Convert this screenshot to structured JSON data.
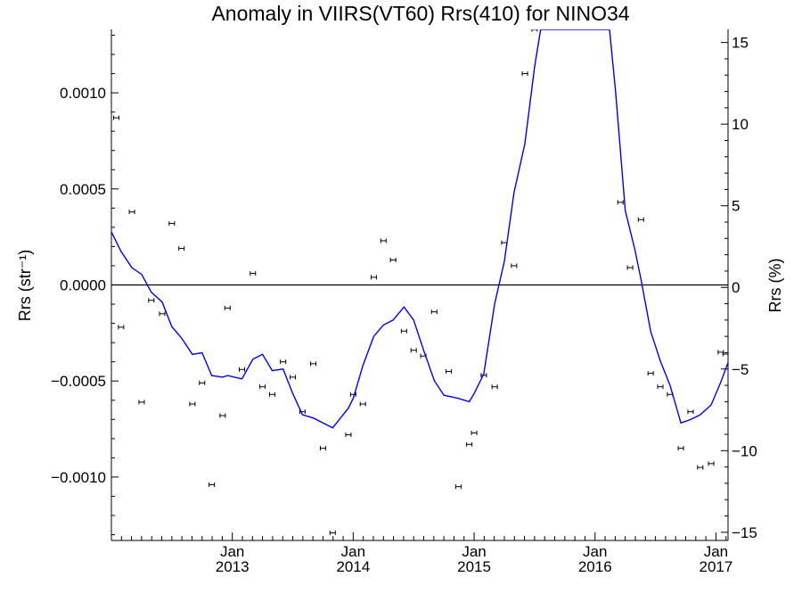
{
  "chart_data": {
    "type": "scatter",
    "title": "Anomaly in VIIRS(VT60) Rrs(410) for NINO34",
    "ylabel_left": "Rrs (str⁻¹)",
    "ylabel_right": "Rrs (%)",
    "xlim": [
      2012.0,
      2017.1
    ],
    "ylim_left": [
      -0.00133,
      0.00133
    ],
    "ylim_right": [
      -15.5,
      15.8
    ],
    "grid": false,
    "zero_line": true,
    "x_ticks": [
      {
        "x": 2013.0,
        "line1": "Jan",
        "line2": "2013"
      },
      {
        "x": 2014.0,
        "line1": "Jan",
        "line2": "2014"
      },
      {
        "x": 2015.0,
        "line1": "Jan",
        "line2": "2015"
      },
      {
        "x": 2016.0,
        "line1": "Jan",
        "line2": "2016"
      },
      {
        "x": 2017.0,
        "line1": "Jan",
        "line2": "2017"
      }
    ],
    "y_ticks_left": [
      {
        "v": 0.001,
        "label": "0.0010"
      },
      {
        "v": 0.0005,
        "label": "0.0005"
      },
      {
        "v": 0.0,
        "label": "0.0000"
      },
      {
        "v": -0.0005,
        "label": "−0.0005"
      },
      {
        "v": -0.001,
        "label": "−0.0010"
      }
    ],
    "y_ticks_right": [
      {
        "v": 15,
        "label": "15"
      },
      {
        "v": 10,
        "label": "10"
      },
      {
        "v": 5,
        "label": "5"
      },
      {
        "v": 0,
        "label": "0"
      },
      {
        "v": -5,
        "label": "−5"
      },
      {
        "v": -10,
        "label": "−10"
      },
      {
        "v": -15,
        "label": "−15"
      }
    ],
    "series": [
      {
        "axis": "left",
        "marker": "errorbar",
        "color": "#000000",
        "points": [
          {
            "x": 2012.04,
            "y": 0.00087
          },
          {
            "x": 2012.08,
            "y": -0.00022
          },
          {
            "x": 2012.17,
            "y": 0.00038
          },
          {
            "x": 2012.25,
            "y": -0.00061
          },
          {
            "x": 2012.33,
            "y": -8e-05
          },
          {
            "x": 2012.42,
            "y": -0.00015
          },
          {
            "x": 2012.5,
            "y": 0.00032
          },
          {
            "x": 2012.58,
            "y": 0.00019
          },
          {
            "x": 2012.67,
            "y": -0.00062
          },
          {
            "x": 2012.75,
            "y": -0.00051
          },
          {
            "x": 2012.83,
            "y": -0.00104
          },
          {
            "x": 2012.92,
            "y": -0.00068
          },
          {
            "x": 2012.96,
            "y": -0.00012
          },
          {
            "x": 2013.08,
            "y": -0.00044
          },
          {
            "x": 2013.17,
            "y": 6e-05
          },
          {
            "x": 2013.25,
            "y": -0.00053
          },
          {
            "x": 2013.33,
            "y": -0.00057
          },
          {
            "x": 2013.42,
            "y": -0.0004
          },
          {
            "x": 2013.5,
            "y": -0.00048
          },
          {
            "x": 2013.58,
            "y": -0.00066
          },
          {
            "x": 2013.67,
            "y": -0.00041
          },
          {
            "x": 2013.75,
            "y": -0.00085
          },
          {
            "x": 2013.83,
            "y": -0.00129
          },
          {
            "x": 2013.96,
            "y": -0.00078
          },
          {
            "x": 2014.0,
            "y": -0.00057
          },
          {
            "x": 2014.08,
            "y": -0.00062
          },
          {
            "x": 2014.17,
            "y": 4e-05
          },
          {
            "x": 2014.25,
            "y": 0.00023
          },
          {
            "x": 2014.33,
            "y": 0.00013
          },
          {
            "x": 2014.42,
            "y": -0.00024
          },
          {
            "x": 2014.5,
            "y": -0.00034
          },
          {
            "x": 2014.58,
            "y": -0.00037
          },
          {
            "x": 2014.67,
            "y": -0.00014
          },
          {
            "x": 2014.79,
            "y": -0.00045
          },
          {
            "x": 2014.87,
            "y": -0.00105
          },
          {
            "x": 2014.96,
            "y": -0.00083
          },
          {
            "x": 2015.0,
            "y": -0.00077
          },
          {
            "x": 2015.08,
            "y": -0.00047
          },
          {
            "x": 2015.17,
            "y": -0.00053
          },
          {
            "x": 2015.25,
            "y": 0.00022
          },
          {
            "x": 2015.33,
            "y": 0.0001
          },
          {
            "x": 2015.42,
            "y": 0.0011
          },
          {
            "x": 2015.5,
            "y": 0.00133
          },
          {
            "x": 2016.21,
            "y": 0.00043
          },
          {
            "x": 2016.29,
            "y": 9e-05
          },
          {
            "x": 2016.38,
            "y": 0.00034
          },
          {
            "x": 2016.46,
            "y": -0.00046
          },
          {
            "x": 2016.54,
            "y": -0.00053
          },
          {
            "x": 2016.62,
            "y": -0.00057
          },
          {
            "x": 2016.71,
            "y": -0.00085
          },
          {
            "x": 2016.79,
            "y": -0.00066
          },
          {
            "x": 2016.87,
            "y": -0.00095
          },
          {
            "x": 2016.96,
            "y": -0.00093
          },
          {
            "x": 2017.04,
            "y": -0.00035
          },
          {
            "x": 2017.08,
            "y": -0.00036
          }
        ]
      },
      {
        "axis": "right",
        "marker": "line",
        "color": "#0000ee",
        "points": [
          {
            "x": 2012.0,
            "y": 3.4
          },
          {
            "x": 2012.08,
            "y": 2.2
          },
          {
            "x": 2012.17,
            "y": 1.2
          },
          {
            "x": 2012.25,
            "y": 0.8
          },
          {
            "x": 2012.33,
            "y": -0.3
          },
          {
            "x": 2012.42,
            "y": -0.9
          },
          {
            "x": 2012.5,
            "y": -2.4
          },
          {
            "x": 2012.58,
            "y": -3.1
          },
          {
            "x": 2012.67,
            "y": -4.1
          },
          {
            "x": 2012.75,
            "y": -4.0
          },
          {
            "x": 2012.83,
            "y": -5.4
          },
          {
            "x": 2012.92,
            "y": -5.5
          },
          {
            "x": 2012.96,
            "y": -5.4
          },
          {
            "x": 2013.08,
            "y": -5.6
          },
          {
            "x": 2013.17,
            "y": -4.4
          },
          {
            "x": 2013.25,
            "y": -4.1
          },
          {
            "x": 2013.33,
            "y": -5.1
          },
          {
            "x": 2013.42,
            "y": -5.0
          },
          {
            "x": 2013.5,
            "y": -6.5
          },
          {
            "x": 2013.58,
            "y": -7.8
          },
          {
            "x": 2013.67,
            "y": -8.0
          },
          {
            "x": 2013.75,
            "y": -8.3
          },
          {
            "x": 2013.83,
            "y": -8.6
          },
          {
            "x": 2013.96,
            "y": -7.4
          },
          {
            "x": 2014.0,
            "y": -6.8
          },
          {
            "x": 2014.08,
            "y": -4.8
          },
          {
            "x": 2014.17,
            "y": -3.0
          },
          {
            "x": 2014.25,
            "y": -2.3
          },
          {
            "x": 2014.33,
            "y": -2.0
          },
          {
            "x": 2014.42,
            "y": -1.2
          },
          {
            "x": 2014.5,
            "y": -2.0
          },
          {
            "x": 2014.58,
            "y": -3.8
          },
          {
            "x": 2014.67,
            "y": -5.7
          },
          {
            "x": 2014.75,
            "y": -6.6
          },
          {
            "x": 2014.87,
            "y": -6.8
          },
          {
            "x": 2014.96,
            "y": -7.0
          },
          {
            "x": 2015.0,
            "y": -6.5
          },
          {
            "x": 2015.08,
            "y": -5.3
          },
          {
            "x": 2015.17,
            "y": -1.0
          },
          {
            "x": 2015.25,
            "y": 1.6
          },
          {
            "x": 2015.33,
            "y": 5.8
          },
          {
            "x": 2015.42,
            "y": 8.8
          },
          {
            "x": 2015.5,
            "y": 13.5
          },
          {
            "x": 2015.55,
            "y": 15.8
          },
          {
            "x": 2016.12,
            "y": 15.8
          },
          {
            "x": 2016.17,
            "y": 12.0
          },
          {
            "x": 2016.25,
            "y": 4.7
          },
          {
            "x": 2016.33,
            "y": 2.3
          },
          {
            "x": 2016.38,
            "y": 0.5
          },
          {
            "x": 2016.46,
            "y": -2.7
          },
          {
            "x": 2016.54,
            "y": -4.5
          },
          {
            "x": 2016.62,
            "y": -6.0
          },
          {
            "x": 2016.71,
            "y": -8.3
          },
          {
            "x": 2016.79,
            "y": -8.1
          },
          {
            "x": 2016.87,
            "y": -7.8
          },
          {
            "x": 2016.96,
            "y": -7.2
          },
          {
            "x": 2017.04,
            "y": -5.8
          },
          {
            "x": 2017.1,
            "y": -4.6
          }
        ]
      }
    ]
  }
}
